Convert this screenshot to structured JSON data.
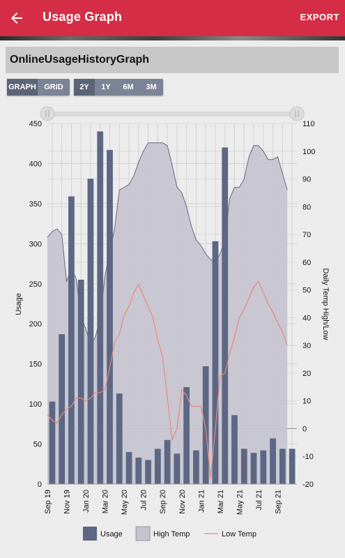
{
  "appbar": {
    "title": "Usage Graph",
    "export_label": "EXPORT"
  },
  "header": {
    "title": "OnlineUsageHistoryGraph"
  },
  "view_toggle": {
    "graph_label": "GRAPH",
    "grid_label": "GRID",
    "selected": "GRAPH"
  },
  "range_toggle": {
    "options": [
      "2Y",
      "1Y",
      "6M",
      "3M"
    ],
    "selected": "2Y"
  },
  "colors": {
    "appbar": "#d42d45",
    "usage_bar": "#5c6784",
    "high_temp_fill": "#c5c3cf",
    "high_temp_line": "#6a6684",
    "low_temp_line": "#e8897a"
  },
  "chart_data": {
    "type": "bar",
    "ylabel": "Usage",
    "y2label": "Daily Temp High/Low",
    "ylim": [
      0,
      450
    ],
    "y2lim": [
      -20,
      110
    ],
    "yticks": [
      "0",
      "50",
      "100",
      "150",
      "200",
      "250",
      "300",
      "350",
      "400",
      "450"
    ],
    "y2ticks": [
      "-20",
      "-10",
      "0",
      "10",
      "20",
      "30",
      "40",
      "50",
      "60",
      "70",
      "80",
      "90",
      "100",
      "110"
    ],
    "xtick_labels": [
      "Sep 19",
      "Nov 19",
      "Jan 20",
      "Mar 20",
      "May 20",
      "Jul 20",
      "Sep 20",
      "Nov 20",
      "Jan 21",
      "Mar 21",
      "May 21",
      "Jul 21",
      "Sep 21"
    ],
    "legend": [
      "Usage",
      "High Temp",
      "Low Temp"
    ],
    "legend_position": "bottom",
    "grid": true,
    "series": [
      {
        "name": "Usage",
        "values": [
          103,
          187,
          359,
          255,
          381,
          440,
          417,
          113,
          40,
          33,
          30,
          44,
          55,
          38,
          121,
          42,
          147,
          303,
          420,
          86,
          44,
          39,
          42,
          57,
          44,
          44
        ]
      },
      {
        "name": "High Temp",
        "x": [
          0,
          0.5,
          1,
          1.5,
          2,
          2.5,
          3,
          3.5,
          4,
          4.5,
          5,
          5.5,
          6,
          6.5,
          7,
          7.5,
          8,
          8.5,
          9,
          9.5,
          10,
          10.5,
          11,
          11.5,
          12,
          12.5,
          13,
          13.5,
          14,
          14.5,
          15,
          15.5,
          16,
          16.5,
          17,
          17.5,
          18,
          18.5,
          19,
          19.5,
          20,
          20.5,
          21,
          21.5,
          22,
          22.5,
          23,
          23.5,
          24,
          24.5,
          25
        ],
        "values": [
          69,
          71,
          72,
          70,
          53,
          58,
          54,
          40,
          36,
          30,
          33,
          40,
          55,
          64,
          72,
          86,
          87,
          88,
          91,
          96,
          100,
          103,
          103,
          103,
          103,
          102,
          95,
          87,
          85,
          80,
          73,
          68,
          66,
          63,
          61,
          60,
          63,
          68,
          83,
          87,
          87,
          90,
          98,
          102,
          102,
          100,
          97,
          97,
          98,
          92,
          86
        ]
      },
      {
        "name": "Low Temp",
        "x": [
          0,
          0.5,
          1,
          1.5,
          2,
          2.5,
          3,
          3.5,
          4,
          4.5,
          5,
          5.5,
          6,
          6.5,
          7,
          7.5,
          8,
          8.5,
          9,
          9.5,
          10,
          10.5,
          11,
          11.5,
          12,
          12.5,
          13,
          13.5,
          14,
          14.5,
          15,
          15.5,
          16,
          16.5,
          17,
          17.5,
          18,
          18.5,
          19,
          19.5,
          20,
          20.5,
          21,
          21.5,
          22,
          22.5,
          23,
          23.5,
          24,
          24.5,
          25
        ],
        "values": [
          5,
          3,
          2,
          5,
          7,
          8,
          11,
          11,
          10,
          11,
          13,
          13,
          14,
          22,
          31,
          34,
          41,
          44,
          49,
          52,
          48,
          44,
          40,
          32,
          26,
          11,
          -4,
          0,
          14,
          12,
          8,
          8,
          8,
          0,
          -18,
          0,
          19,
          20,
          27,
          33,
          40,
          43,
          47,
          51,
          53,
          49,
          45,
          42,
          38,
          35,
          30
        ]
      }
    ]
  }
}
